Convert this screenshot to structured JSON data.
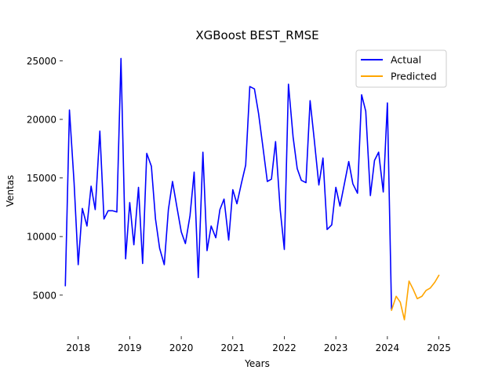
{
  "chart_data": {
    "type": "line",
    "title": "XGBoost BEST_RMSE",
    "xlabel": "Years",
    "ylabel": "Ventas",
    "xlim": [
      2017.7,
      2025.25
    ],
    "ylim": [
      1500,
      26300
    ],
    "x_ticks": [
      2018,
      2019,
      2020,
      2021,
      2022,
      2023,
      2024,
      2025
    ],
    "y_ticks": [
      5000,
      10000,
      15000,
      20000,
      25000
    ],
    "grid": false,
    "legend": "top-right",
    "series": [
      {
        "name": "Actual",
        "color": "#0000ff",
        "points": [
          [
            2017.75,
            5800
          ],
          [
            2017.83,
            20800
          ],
          [
            2017.92,
            14600
          ],
          [
            2018.0,
            7600
          ],
          [
            2018.08,
            12400
          ],
          [
            2018.17,
            10900
          ],
          [
            2018.25,
            14300
          ],
          [
            2018.33,
            12300
          ],
          [
            2018.42,
            19000
          ],
          [
            2018.5,
            11500
          ],
          [
            2018.58,
            12200
          ],
          [
            2018.67,
            12200
          ],
          [
            2018.75,
            12100
          ],
          [
            2018.83,
            25200
          ],
          [
            2018.92,
            8100
          ],
          [
            2019.0,
            12900
          ],
          [
            2019.08,
            9300
          ],
          [
            2019.17,
            14200
          ],
          [
            2019.25,
            7700
          ],
          [
            2019.33,
            17100
          ],
          [
            2019.42,
            16000
          ],
          [
            2019.5,
            11500
          ],
          [
            2019.58,
            9000
          ],
          [
            2019.67,
            7600
          ],
          [
            2019.75,
            12300
          ],
          [
            2019.83,
            14700
          ],
          [
            2019.92,
            12400
          ],
          [
            2020.0,
            10400
          ],
          [
            2020.08,
            9400
          ],
          [
            2020.17,
            11800
          ],
          [
            2020.25,
            15500
          ],
          [
            2020.33,
            6500
          ],
          [
            2020.42,
            17200
          ],
          [
            2020.5,
            8800
          ],
          [
            2020.58,
            10900
          ],
          [
            2020.67,
            9900
          ],
          [
            2020.75,
            12300
          ],
          [
            2020.83,
            13200
          ],
          [
            2020.92,
            9700
          ],
          [
            2021.0,
            14000
          ],
          [
            2021.08,
            12800
          ],
          [
            2021.17,
            14600
          ],
          [
            2021.25,
            16100
          ],
          [
            2021.33,
            22800
          ],
          [
            2021.42,
            22600
          ],
          [
            2021.5,
            20500
          ],
          [
            2021.58,
            17800
          ],
          [
            2021.67,
            14700
          ],
          [
            2021.75,
            14900
          ],
          [
            2021.83,
            18100
          ],
          [
            2021.92,
            12300
          ],
          [
            2022.0,
            8900
          ],
          [
            2022.08,
            23000
          ],
          [
            2022.17,
            18500
          ],
          [
            2022.25,
            15800
          ],
          [
            2022.33,
            14800
          ],
          [
            2022.42,
            14600
          ],
          [
            2022.5,
            21600
          ],
          [
            2022.58,
            18300
          ],
          [
            2022.67,
            14400
          ],
          [
            2022.75,
            16700
          ],
          [
            2022.83,
            10600
          ],
          [
            2022.92,
            11000
          ],
          [
            2023.0,
            14200
          ],
          [
            2023.08,
            12600
          ],
          [
            2023.17,
            14600
          ],
          [
            2023.25,
            16400
          ],
          [
            2023.33,
            14500
          ],
          [
            2023.42,
            13700
          ],
          [
            2023.5,
            22100
          ],
          [
            2023.58,
            20700
          ],
          [
            2023.67,
            13500
          ],
          [
            2023.75,
            16500
          ],
          [
            2023.83,
            17200
          ],
          [
            2023.92,
            13800
          ],
          [
            2024.0,
            21400
          ],
          [
            2024.08,
            3800
          ]
        ]
      },
      {
        "name": "Predicted",
        "color": "#ffa500",
        "points": [
          [
            2024.08,
            3700
          ],
          [
            2024.17,
            4900
          ],
          [
            2024.25,
            4400
          ],
          [
            2024.33,
            2900
          ],
          [
            2024.42,
            6200
          ],
          [
            2024.5,
            5500
          ],
          [
            2024.58,
            4700
          ],
          [
            2024.67,
            4900
          ],
          [
            2024.75,
            5400
          ],
          [
            2024.83,
            5600
          ],
          [
            2024.92,
            6100
          ],
          [
            2025.0,
            6700
          ]
        ]
      }
    ]
  }
}
